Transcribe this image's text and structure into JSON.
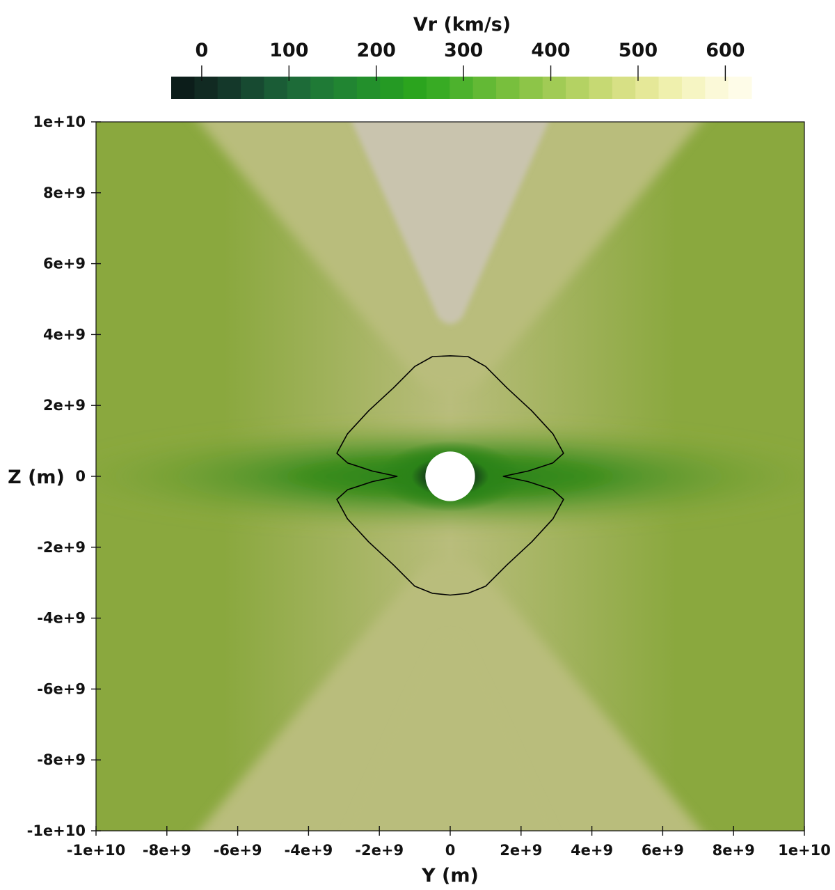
{
  "chart_data": {
    "type": "heatmap",
    "title": "",
    "colorbar": {
      "label": "Vr (km/s)",
      "ticks": [
        0,
        100,
        200,
        300,
        400,
        500,
        600
      ],
      "range": [
        -35,
        630
      ],
      "levels": 25,
      "colors": [
        "#0c1d1a",
        "#112a22",
        "#14382a",
        "#174a31",
        "#1a5c36",
        "#1d6b38",
        "#1f7a36",
        "#218532",
        "#23902c",
        "#259a24",
        "#2ba41e",
        "#38ab24",
        "#4db22d",
        "#63b935",
        "#78bf3d",
        "#8dc548",
        "#a1cb55",
        "#b4d263",
        "#c6d973",
        "#d7e085",
        "#e5e898",
        "#eff0ad",
        "#f6f5c3",
        "#fbf9d8",
        "#fefce8"
      ]
    },
    "xlabel": "Y (m)",
    "ylabel": "Z (m)",
    "xlim": [
      -10000000000.0,
      10000000000.0
    ],
    "ylim": [
      -10000000000.0,
      10000000000.0
    ],
    "xticks": [
      -10000000000.0,
      -8000000000.0,
      -6000000000.0,
      -4000000000.0,
      -2000000000.0,
      0,
      2000000000.0,
      4000000000.0,
      6000000000.0,
      8000000000.0,
      10000000000.0
    ],
    "yticks": [
      -10000000000.0,
      -8000000000.0,
      -6000000000.0,
      -4000000000.0,
      -2000000000.0,
      0,
      2000000000.0,
      4000000000.0,
      6000000000.0,
      8000000000.0,
      10000000000.0
    ],
    "xtick_labels": [
      "-1e+10",
      "-8e+9",
      "-6e+9",
      "-4e+9",
      "-2e+9",
      "0",
      "2e+9",
      "4e+9",
      "6e+9",
      "8e+9",
      "1e+10"
    ],
    "ytick_labels": [
      "-1e+10",
      "-8e+9",
      "-6e+9",
      "-4e+9",
      "-2e+9",
      "0",
      "2e+9",
      "4e+9",
      "6e+9",
      "8e+9",
      "1e+10"
    ],
    "field_colors": {
      "polar": "#c9c4ae",
      "high": "#b9bd7c",
      "mid": "#8aa83e",
      "low": "#3c8d1e",
      "equator": "#2b8318",
      "core": "#0d2818"
    },
    "inner_body": {
      "center": [
        0,
        0
      ],
      "radius": 700000000.0,
      "color": "#ffffff"
    },
    "contour_line": {
      "color": "#000000",
      "points": [
        [
          0,
          3400000000.0
        ],
        [
          500000000.0,
          3380000000.0
        ],
        [
          1000000000.0,
          3100000000.0
        ],
        [
          1600000000.0,
          2500000000.0
        ],
        [
          2300000000.0,
          1850000000.0
        ],
        [
          2900000000.0,
          1200000000.0
        ],
        [
          3200000000.0,
          650000000.0
        ],
        [
          2900000000.0,
          380000000.0
        ],
        [
          2200000000.0,
          150000000.0
        ],
        [
          1500000000.0,
          0
        ],
        [
          2200000000.0,
          -150000000.0
        ],
        [
          2900000000.0,
          -380000000.0
        ],
        [
          3200000000.0,
          -650000000.0
        ],
        [
          2900000000.0,
          -1200000000.0
        ],
        [
          2300000000.0,
          -1850000000.0
        ],
        [
          1600000000.0,
          -2500000000.0
        ],
        [
          1000000000.0,
          -3100000000.0
        ],
        [
          500000000.0,
          -3300000000.0
        ],
        [
          0,
          -3350000000.0
        ],
        [
          -500000000.0,
          -3300000000.0
        ],
        [
          -1000000000.0,
          -3100000000.0
        ],
        [
          -1600000000.0,
          -2500000000.0
        ],
        [
          -2300000000.0,
          -1850000000.0
        ],
        [
          -2900000000.0,
          -1200000000.0
        ],
        [
          -3200000000.0,
          -650000000.0
        ],
        [
          -2900000000.0,
          -380000000.0
        ],
        [
          -2200000000.0,
          -150000000.0
        ],
        [
          -1500000000.0,
          0
        ],
        [
          -2200000000.0,
          150000000.0
        ],
        [
          -2900000000.0,
          380000000.0
        ],
        [
          -3200000000.0,
          650000000.0
        ],
        [
          -2900000000.0,
          1200000000.0
        ],
        [
          -2300000000.0,
          1850000000.0
        ],
        [
          -1600000000.0,
          2500000000.0
        ],
        [
          -1000000000.0,
          3100000000.0
        ],
        [
          -500000000.0,
          3380000000.0
        ]
      ]
    }
  }
}
